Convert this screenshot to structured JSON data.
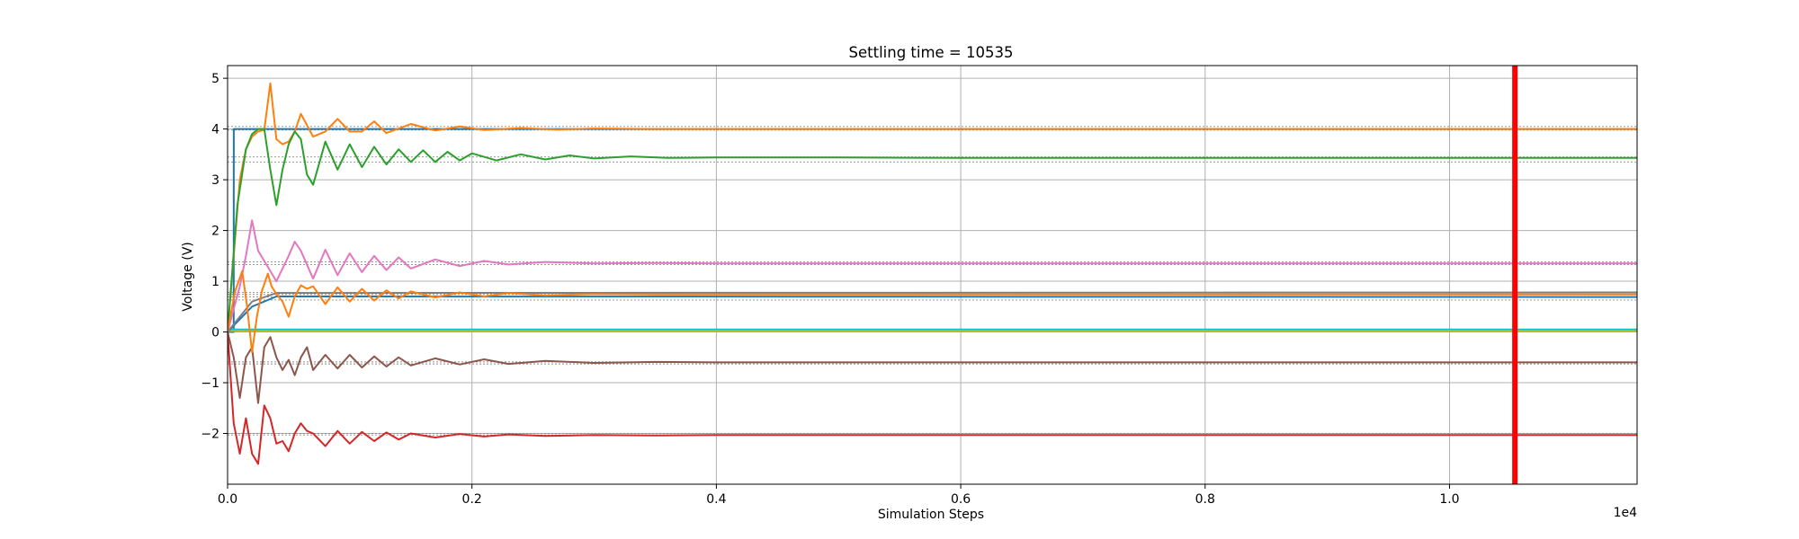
{
  "chart_data": {
    "type": "line",
    "title": "Settling time = 10535",
    "xlabel": "Simulation Steps",
    "ylabel": "Voltage (V)",
    "x_offset_label": "1e4",
    "xlim": [
      0,
      11535
    ],
    "ylim": [
      -3.0,
      5.25
    ],
    "x_ticks": [
      0,
      2000,
      4000,
      6000,
      8000,
      10000
    ],
    "x_tick_labels": [
      "0.0",
      "0.2",
      "0.4",
      "0.6",
      "0.8",
      "1.0"
    ],
    "y_ticks": [
      -2,
      -1,
      0,
      1,
      2,
      3,
      4,
      5
    ],
    "y_tick_labels": [
      "−2",
      "−1",
      "0",
      "1",
      "2",
      "3",
      "4",
      "5"
    ],
    "grid": true,
    "settling_time": 10535,
    "settling_marker_color": "#ff0000",
    "reference_levels": [
      4.05,
      3.98,
      3.45,
      3.35,
      1.38,
      1.33,
      0.78,
      0.74,
      0.69,
      0.63,
      -0.59,
      -0.63,
      -2.0,
      -2.03
    ],
    "series": [
      {
        "color": "#1f77b4",
        "x": [
          0,
          50,
          51,
          11535
        ],
        "y": [
          0,
          0,
          4.0,
          4.0
        ]
      },
      {
        "color": "#1f77b4",
        "x": [
          0,
          50,
          11535
        ],
        "y": [
          0,
          0.02,
          0.02
        ]
      },
      {
        "color": "#17becf",
        "x": [
          0,
          11535
        ],
        "y": [
          0.05,
          0.05
        ]
      },
      {
        "color": "#bcbd22",
        "x": [
          0,
          11535
        ],
        "y": [
          0.02,
          0.02
        ]
      },
      {
        "color": "#1f77b4",
        "x": [
          0,
          200,
          400,
          11535
        ],
        "y": [
          0,
          0.5,
          0.7,
          0.69
        ]
      },
      {
        "color": "#7f7f7f",
        "x": [
          0,
          200,
          400,
          11535
        ],
        "y": [
          0,
          0.6,
          0.77,
          0.78
        ]
      },
      {
        "color": "#ff7f0e",
        "x": [
          0,
          50,
          100,
          150,
          200,
          250,
          300,
          350,
          400,
          450,
          500,
          550,
          600,
          700,
          800,
          900,
          1000,
          1100,
          1200,
          1300,
          1500,
          1700,
          1900,
          2100,
          2400,
          2700,
          3000,
          3500,
          4000,
          11535
        ],
        "y": [
          0,
          1.5,
          3.0,
          3.6,
          3.85,
          3.95,
          3.98,
          4.9,
          3.8,
          3.7,
          3.75,
          3.95,
          4.3,
          3.85,
          3.95,
          4.2,
          3.95,
          3.95,
          4.15,
          3.92,
          4.1,
          3.97,
          4.05,
          3.98,
          4.02,
          3.99,
          4.01,
          4.0,
          4.0,
          4.0
        ]
      },
      {
        "color": "#2ca02c",
        "x": [
          0,
          80,
          150,
          200,
          250,
          300,
          350,
          400,
          450,
          500,
          550,
          600,
          650,
          700,
          800,
          900,
          1000,
          1100,
          1200,
          1300,
          1400,
          1500,
          1600,
          1700,
          1800,
          1900,
          2000,
          2200,
          2400,
          2600,
          2800,
          3000,
          3300,
          3600,
          4000,
          4500,
          5000,
          6000,
          7000,
          11535
        ],
        "y": [
          0,
          2.5,
          3.6,
          3.9,
          4.0,
          4.0,
          3.2,
          2.5,
          3.2,
          3.7,
          3.95,
          3.8,
          3.1,
          2.9,
          3.75,
          3.2,
          3.7,
          3.25,
          3.65,
          3.3,
          3.6,
          3.35,
          3.58,
          3.35,
          3.55,
          3.38,
          3.52,
          3.38,
          3.5,
          3.4,
          3.48,
          3.42,
          3.46,
          3.43,
          3.44,
          3.44,
          3.44,
          3.43,
          3.43,
          3.43
        ]
      },
      {
        "color": "#e377c2",
        "x": [
          0,
          100,
          150,
          200,
          250,
          300,
          400,
          500,
          550,
          600,
          700,
          800,
          900,
          1000,
          1100,
          1200,
          1300,
          1400,
          1500,
          1700,
          1900,
          2100,
          2300,
          2600,
          3000,
          3500,
          4000,
          11535
        ],
        "y": [
          0,
          0.9,
          1.5,
          2.2,
          1.6,
          1.4,
          1.0,
          1.5,
          1.78,
          1.6,
          1.05,
          1.62,
          1.12,
          1.55,
          1.18,
          1.5,
          1.22,
          1.47,
          1.25,
          1.43,
          1.3,
          1.4,
          1.33,
          1.38,
          1.35,
          1.36,
          1.35,
          1.35
        ]
      },
      {
        "color": "#8c564b",
        "x": [
          0,
          50,
          100,
          150,
          200,
          250,
          300,
          350,
          400,
          450,
          500,
          550,
          600,
          650,
          700,
          800,
          900,
          1000,
          1100,
          1200,
          1300,
          1400,
          1500,
          1700,
          1900,
          2100,
          2300,
          2600,
          3000,
          3500,
          4000,
          11535
        ],
        "y": [
          0,
          -0.5,
          -1.3,
          -0.5,
          -0.3,
          -1.4,
          -0.3,
          -0.1,
          -0.5,
          -0.75,
          -0.55,
          -0.85,
          -0.5,
          -0.3,
          -0.75,
          -0.45,
          -0.72,
          -0.45,
          -0.7,
          -0.48,
          -0.68,
          -0.5,
          -0.66,
          -0.52,
          -0.64,
          -0.54,
          -0.63,
          -0.57,
          -0.61,
          -0.59,
          -0.6,
          -0.6
        ]
      },
      {
        "color": "#ff7f0e",
        "x": [
          0,
          60,
          120,
          160,
          200,
          240,
          280,
          330,
          360,
          400,
          450,
          500,
          550,
          600,
          650,
          700,
          800,
          900,
          1000,
          1100,
          1200,
          1300,
          1400,
          1500,
          1700,
          1900,
          2100,
          2300,
          2600,
          3000,
          3500,
          4000,
          11535
        ],
        "y": [
          0,
          0.8,
          1.2,
          0.5,
          -0.4,
          0.3,
          0.8,
          1.15,
          0.9,
          0.75,
          0.6,
          0.3,
          0.7,
          0.92,
          0.85,
          0.9,
          0.55,
          0.88,
          0.6,
          0.85,
          0.62,
          0.82,
          0.66,
          0.8,
          0.68,
          0.78,
          0.7,
          0.77,
          0.72,
          0.75,
          0.74,
          0.74,
          0.74
        ]
      },
      {
        "color": "#d62728",
        "x": [
          0,
          50,
          100,
          150,
          200,
          250,
          300,
          350,
          400,
          450,
          500,
          550,
          600,
          650,
          700,
          800,
          900,
          1000,
          1100,
          1200,
          1300,
          1400,
          1500,
          1700,
          1900,
          2100,
          2300,
          2600,
          3000,
          3500,
          4000,
          5000,
          11535
        ],
        "y": [
          0,
          -1.8,
          -2.4,
          -1.7,
          -2.4,
          -2.6,
          -1.45,
          -1.7,
          -2.2,
          -2.15,
          -2.35,
          -2.0,
          -1.8,
          -1.95,
          -2.0,
          -2.25,
          -1.95,
          -2.2,
          -1.97,
          -2.15,
          -1.98,
          -2.12,
          -2.0,
          -2.08,
          -2.01,
          -2.06,
          -2.02,
          -2.05,
          -2.03,
          -2.04,
          -2.03,
          -2.03,
          -2.03
        ]
      }
    ]
  }
}
